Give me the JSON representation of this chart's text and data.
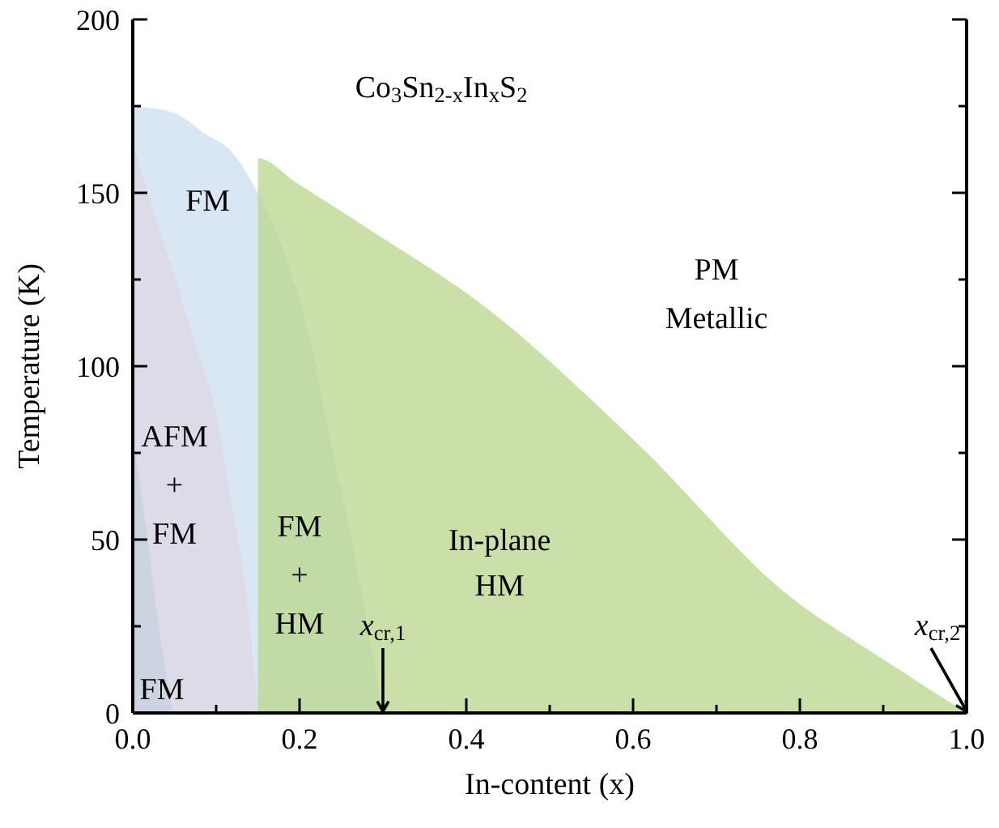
{
  "chart_data": {
    "type": "area",
    "title": "Co$_{3}$Sn$_{2-x}$In$_{x}$S$_{2}$",
    "xlabel": "In-content (x)",
    "ylabel": "Temperature (K)",
    "xlim": [
      0,
      1
    ],
    "ylim": [
      0,
      200
    ],
    "xticks": [
      {
        "value": 0,
        "label": "0.0"
      },
      {
        "value": 0.1,
        "label": null
      },
      {
        "value": 0.2,
        "label": "0.2"
      },
      {
        "value": 0.3,
        "label": null
      },
      {
        "value": 0.4,
        "label": "0.4"
      },
      {
        "value": 0.5,
        "label": null
      },
      {
        "value": 0.6,
        "label": "0.6"
      },
      {
        "value": 0.7,
        "label": null
      },
      {
        "value": 0.8,
        "label": "0.8"
      },
      {
        "value": 0.9,
        "label": null
      },
      {
        "value": 1,
        "label": "1.0"
      }
    ],
    "yticks": [
      0,
      {
        "value": 25,
        "label": null
      },
      50,
      {
        "value": 75,
        "label": null
      },
      100,
      {
        "value": 125,
        "label": null
      },
      150,
      {
        "value": 175,
        "label": null
      },
      200
    ],
    "grid": false,
    "series": [
      {
        "color": "#d8e7f3",
        "x": [
          0,
          0.05,
          0.087,
          0.118,
          0.15,
          0.184,
          0.216,
          0.235,
          0.262,
          0.28,
          0.3
        ],
        "values": [
          175,
          173,
          167,
          162,
          150,
          131,
          104,
          81,
          50,
          27,
          0
        ]
      },
      {
        "color": "#dddbe8",
        "x": [
          0,
          0.02,
          0.054,
          0.074,
          0.1,
          0.118,
          0.136,
          0.15
        ],
        "values": [
          165,
          148,
          123,
          107,
          86,
          61,
          34,
          0
        ]
      },
      {
        "color": "#ccd4e2",
        "x": [
          0,
          0.015,
          0.03,
          0.048
        ],
        "values": [
          80,
          55,
          27,
          0
        ]
      },
      {
        "color": "#b9d58c",
        "x": [
          0.15,
          0.15,
          0.196,
          0.28,
          0.423,
          0.604,
          0.786,
          0.903,
          1
        ],
        "values": [
          0,
          160,
          153,
          140,
          117,
          78,
          34,
          15,
          0
        ]
      }
    ],
    "annotations": [
      "FM",
      "AFM",
      "+",
      "FM",
      "FM",
      "FM",
      "+",
      "HM",
      "In-plane",
      "HM",
      "PM",
      "Metallic",
      {
        "text": "x$_{cr,1}$",
        "x": 0.3,
        "y": 0
      },
      {
        "text": "x$_{cr,2}$",
        "x": 1,
        "y": 0
      }
    ]
  }
}
